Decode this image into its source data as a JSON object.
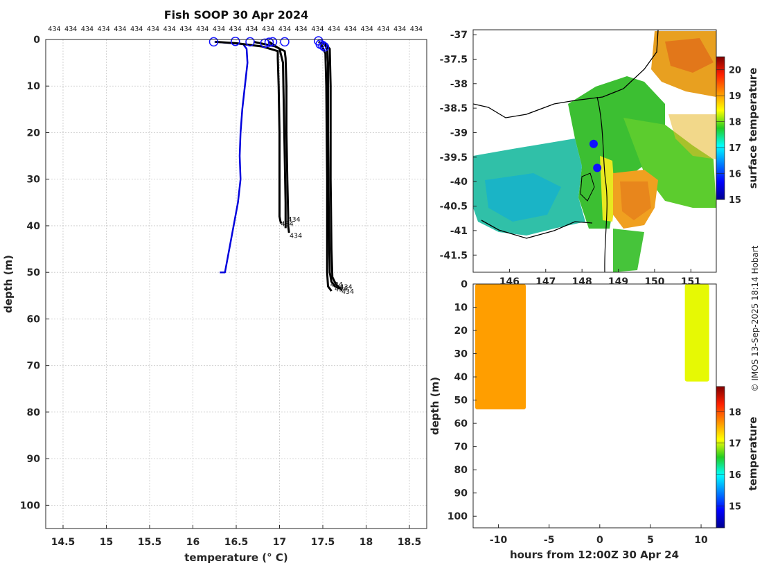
{
  "title": "Fish SOOP 30 Apr 2024",
  "credit": "© IMOS 13-Sep-2025 18:14 Hobart",
  "colors": {
    "profile_black": "#000000",
    "profile_blue": "#0000dd",
    "marker_blue": "#1010ff",
    "grid": "#c8c8c8",
    "axis": "#262626"
  },
  "chart_data": [
    {
      "id": "profile",
      "type": "line",
      "xlabel": "temperature (° C)",
      "ylabel": "depth (m)",
      "xlim": [
        14.3,
        18.7
      ],
      "ylim": [
        0,
        105
      ],
      "xticks": [
        14.5,
        15,
        15.5,
        16,
        16.5,
        17,
        17.5,
        18,
        18.5
      ],
      "xtick_labels": [
        "14.5",
        "15",
        "15.5",
        "16",
        "16.5",
        "17",
        "17.5",
        "18",
        "18.5"
      ],
      "yticks": [
        0,
        10,
        20,
        30,
        40,
        50,
        60,
        70,
        80,
        90,
        100
      ],
      "ytick_labels": [
        "0",
        "10",
        "20",
        "30",
        "40",
        "50",
        "60",
        "70",
        "80",
        "90",
        "100"
      ],
      "top_label": "434",
      "top_label_positions": [
        14.4,
        14.59,
        14.78,
        14.97,
        15.16,
        15.35,
        15.54,
        15.73,
        15.92,
        16.11,
        16.3,
        16.49,
        16.68,
        16.87,
        17.06,
        17.25,
        17.44,
        17.63,
        17.82,
        18.01,
        18.2,
        18.39,
        18.58
      ],
      "bottom_label": "434",
      "series": [
        {
          "name": "blue-profile",
          "color": "#0000dd",
          "width": 2.5,
          "x": [
            16.25,
            16.58,
            16.62,
            16.63,
            16.6,
            16.57,
            16.55,
            16.54,
            16.55,
            16.52,
            16.47,
            16.42,
            16.37,
            16.31
          ],
          "y": [
            0.5,
            1,
            2,
            5,
            10,
            15,
            20,
            25,
            30,
            35,
            40,
            45,
            50,
            50
          ]
        },
        {
          "name": "profile-a",
          "color": "#000000",
          "width": 3,
          "x": [
            16.26,
            16.5,
            16.8,
            16.98,
            16.98,
            16.99,
            17.0,
            17.0,
            17.0,
            17.0,
            17.01,
            17.02
          ],
          "y": [
            0.5,
            0.8,
            1.5,
            2.5,
            4,
            10,
            20,
            30,
            35,
            38,
            39,
            39.5
          ]
        },
        {
          "name": "profile-b",
          "color": "#000000",
          "width": 3,
          "x": [
            16.7,
            16.95,
            17.06,
            17.07,
            17.08,
            17.08,
            17.09,
            17.1,
            17.1,
            17.11
          ],
          "y": [
            0.5,
            1.5,
            2.5,
            4,
            10,
            20,
            30,
            38,
            40,
            41.5
          ]
        },
        {
          "name": "profile-c",
          "color": "#000000",
          "width": 3,
          "x": [
            16.88,
            17.0,
            17.04,
            17.05,
            17.06,
            17.07,
            17.07
          ],
          "y": [
            0.5,
            2,
            5,
            15,
            25,
            35,
            40.5
          ]
        },
        {
          "name": "profile-d",
          "color": "#000000",
          "width": 3,
          "x": [
            17.45,
            17.52,
            17.55,
            17.56,
            17.56,
            17.57,
            17.58,
            17.6,
            17.64,
            17.7
          ],
          "y": [
            0.5,
            1,
            2,
            5,
            20,
            40,
            50,
            52,
            53,
            53.5
          ]
        },
        {
          "name": "profile-e",
          "color": "#000000",
          "width": 3,
          "x": [
            17.5,
            17.58,
            17.59,
            17.59,
            17.6,
            17.61,
            17.65,
            17.72
          ],
          "y": [
            0.5,
            2,
            10,
            30,
            45,
            51,
            52.5,
            53.8
          ]
        },
        {
          "name": "profile-f",
          "color": "#000000",
          "width": 3,
          "x": [
            17.48,
            17.53,
            17.54,
            17.55,
            17.55,
            17.56,
            17.6
          ],
          "y": [
            1,
            3,
            10,
            30,
            50,
            53,
            54
          ]
        }
      ],
      "surface_markers": {
        "x": [
          16.24,
          16.49,
          16.66,
          16.83,
          16.88,
          16.92,
          17.06,
          17.45,
          17.47,
          17.5,
          17.52
        ],
        "y": [
          0.5,
          0.4,
          0.5,
          0.8,
          0.6,
          0.5,
          0.5,
          0.3,
          1.0,
          1.3,
          1.6
        ]
      },
      "end_markers": {
        "x": [
          17.0,
          17.08,
          17.1,
          17.57,
          17.62,
          17.68,
          17.7
        ],
        "y": [
          39.5,
          38.5,
          42,
          52.5,
          53.5,
          53,
          54
        ]
      }
    },
    {
      "id": "map",
      "type": "heatmap",
      "colorbar_label": "surface temperature",
      "clim": [
        15,
        20.5
      ],
      "colorbar_ticks": [
        15,
        16,
        17,
        18,
        19,
        20
      ],
      "colorbar_tick_labels": [
        "15",
        "16",
        "17",
        "18",
        "19",
        "20"
      ],
      "xlim": [
        145.0,
        151.7
      ],
      "ylim": [
        -41.85,
        -36.9
      ],
      "xticks": [
        146,
        147,
        148,
        149,
        150,
        151
      ],
      "xtick_labels": [
        "146",
        "147",
        "148",
        "149",
        "150",
        "151"
      ],
      "yticks": [
        -37,
        -37.5,
        -38,
        -38.5,
        -39,
        -39.5,
        -40,
        -40.5,
        -41,
        -41.5
      ],
      "ytick_labels": [
        "-37",
        "-37.5",
        "-38",
        "-38.5",
        "-39",
        "-39.5",
        "-40",
        "-40.5",
        "-41",
        "-41.5"
      ],
      "observation_positions": {
        "lon": [
          148.32,
          148.42
        ],
        "lat": [
          -39.23,
          -39.72
        ]
      },
      "regions": [
        {
          "name": "western-cool-water",
          "temperature": 17.3
        },
        {
          "name": "central-green-water",
          "temperature": 17.9
        },
        {
          "name": "eastern-warm-eddy",
          "temperature": 19.3
        },
        {
          "name": "northeast-coastal-warm",
          "temperature": 19.6
        },
        {
          "name": "front-yellow-band",
          "temperature": 18.6
        }
      ]
    },
    {
      "id": "section",
      "type": "scatter",
      "xlabel": "hours from 12:00Z 30 Apr 24",
      "ylabel": "depth (m)",
      "xlim": [
        -12.5,
        11.5
      ],
      "ylim": [
        0,
        105
      ],
      "xticks": [
        -10,
        -5,
        0,
        5,
        10
      ],
      "xtick_labels": [
        "-10",
        "-5",
        "0",
        "5",
        "10"
      ],
      "yticks": [
        0,
        10,
        20,
        30,
        40,
        50,
        60,
        70,
        80,
        90,
        100
      ],
      "ytick_labels": [
        "0",
        "10",
        "20",
        "30",
        "40",
        "50",
        "60",
        "70",
        "80",
        "90",
        "100"
      ],
      "colorbar_label": "temperature",
      "clim": [
        14.3,
        18.8
      ],
      "colorbar_ticks": [
        15,
        16,
        17,
        18
      ],
      "colorbar_tick_labels": [
        "15",
        "16",
        "17",
        "18"
      ],
      "columns": [
        {
          "t_start": -12.3,
          "t_end": -7.3,
          "depth_max": 54,
          "temperature": 17.6
        },
        {
          "t_start": 8.4,
          "t_end": 10.8,
          "depth_max": 42,
          "temperature": 17.05
        }
      ]
    }
  ]
}
